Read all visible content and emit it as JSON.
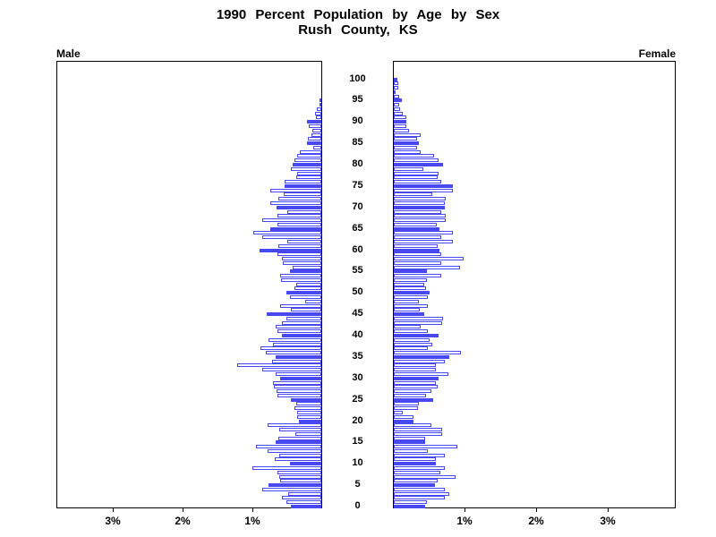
{
  "title": {
    "line1": "1990 Percent Population by Age by Sex",
    "line2": "Rush County, KS"
  },
  "panel_labels": {
    "left": "Male",
    "right": "Female"
  },
  "axis": {
    "left_tick_labels": [
      "1%",
      "2%",
      "3%"
    ],
    "right_tick_labels": [
      "1%",
      "2%",
      "3%"
    ],
    "age_tick_labels": [
      "0",
      "5",
      "10",
      "15",
      "20",
      "25",
      "30",
      "35",
      "40",
      "45",
      "50",
      "55",
      "60",
      "65",
      "70",
      "75",
      "80",
      "85",
      "90",
      "95",
      "100"
    ]
  },
  "colors": {
    "bar_blue": "#4848f0",
    "axis_black": "#000000",
    "background": "#ffffff"
  },
  "chart_data": {
    "type": "bar",
    "subtype": "population-pyramid",
    "title": "1990 Percent Population by Age by Sex — Rush County, KS",
    "x_unit": "percent of total population",
    "age_min": 0,
    "age_max": 100,
    "x_ticks_percent": [
      1,
      2,
      3
    ],
    "xlim_percent_each_side": [
      0,
      3.8
    ],
    "grid": false,
    "solid_bar_rule": "ages divisible by 5 are solid blue; other ages are white with blue outline",
    "series": [
      {
        "name": "Male",
        "side": "left",
        "values_by_age": [
          0.43,
          0.5,
          0.57,
          0.48,
          0.85,
          0.76,
          0.59,
          0.6,
          0.63,
          0.99,
          0.45,
          0.67,
          0.6,
          0.77,
          0.93,
          0.65,
          0.62,
          0.37,
          0.6,
          0.77,
          0.32,
          0.35,
          0.35,
          0.39,
          0.36,
          0.43,
          0.63,
          0.64,
          0.68,
          0.69,
          0.59,
          0.65,
          0.85,
          1.2,
          0.7,
          0.65,
          0.8,
          0.87,
          0.69,
          0.76,
          0.57,
          0.63,
          0.65,
          0.56,
          0.5,
          0.78,
          0.43,
          0.59,
          0.23,
          0.45,
          0.5,
          0.39,
          0.36,
          0.58,
          0.59,
          0.45,
          0.41,
          0.55,
          0.56,
          0.63,
          0.88,
          0.61,
          0.49,
          0.84,
          0.98,
          0.73,
          0.63,
          0.84,
          0.63,
          0.49,
          0.64,
          0.73,
          0.62,
          0.54,
          0.73,
          0.52,
          0.52,
          0.36,
          0.35,
          0.44,
          0.41,
          0.38,
          0.35,
          0.31,
          0.12,
          0.2,
          0.19,
          0.14,
          0.13,
          0.18,
          0.2,
          0.08,
          0.09,
          0.06,
          0.03,
          0.02,
          0,
          0,
          0,
          0,
          0
        ]
      },
      {
        "name": "Female",
        "side": "right",
        "values_by_age": [
          0.44,
          0.46,
          0.71,
          0.77,
          0.71,
          0.58,
          0.61,
          0.86,
          0.65,
          0.71,
          0.59,
          0.59,
          0.71,
          0.48,
          0.89,
          0.44,
          0.44,
          0.67,
          0.67,
          0.52,
          0.28,
          0.28,
          0.12,
          0.34,
          0.35,
          0.55,
          0.45,
          0.53,
          0.61,
          0.59,
          0.63,
          0.76,
          0.59,
          0.59,
          0.71,
          0.78,
          0.94,
          0.48,
          0.54,
          0.5,
          0.62,
          0.47,
          0.37,
          0.68,
          0.69,
          0.42,
          0.36,
          0.47,
          0.35,
          0.48,
          0.5,
          0.45,
          0.42,
          0.46,
          0.66,
          0.46,
          0.93,
          0.66,
          0.97,
          0.66,
          0.64,
          0.61,
          0.83,
          0.66,
          0.82,
          0.64,
          0.6,
          0.73,
          0.73,
          0.66,
          0.71,
          0.71,
          0.73,
          0.54,
          0.83,
          0.82,
          0.66,
          0.61,
          0.63,
          0.41,
          0.69,
          0.63,
          0.56,
          0.37,
          0.33,
          0.35,
          0.33,
          0.37,
          0.21,
          0.18,
          0.17,
          0.18,
          0.12,
          0.09,
          0.07,
          0.11,
          0.07,
          0.03,
          0.06,
          0.06,
          0.05
        ]
      }
    ]
  }
}
